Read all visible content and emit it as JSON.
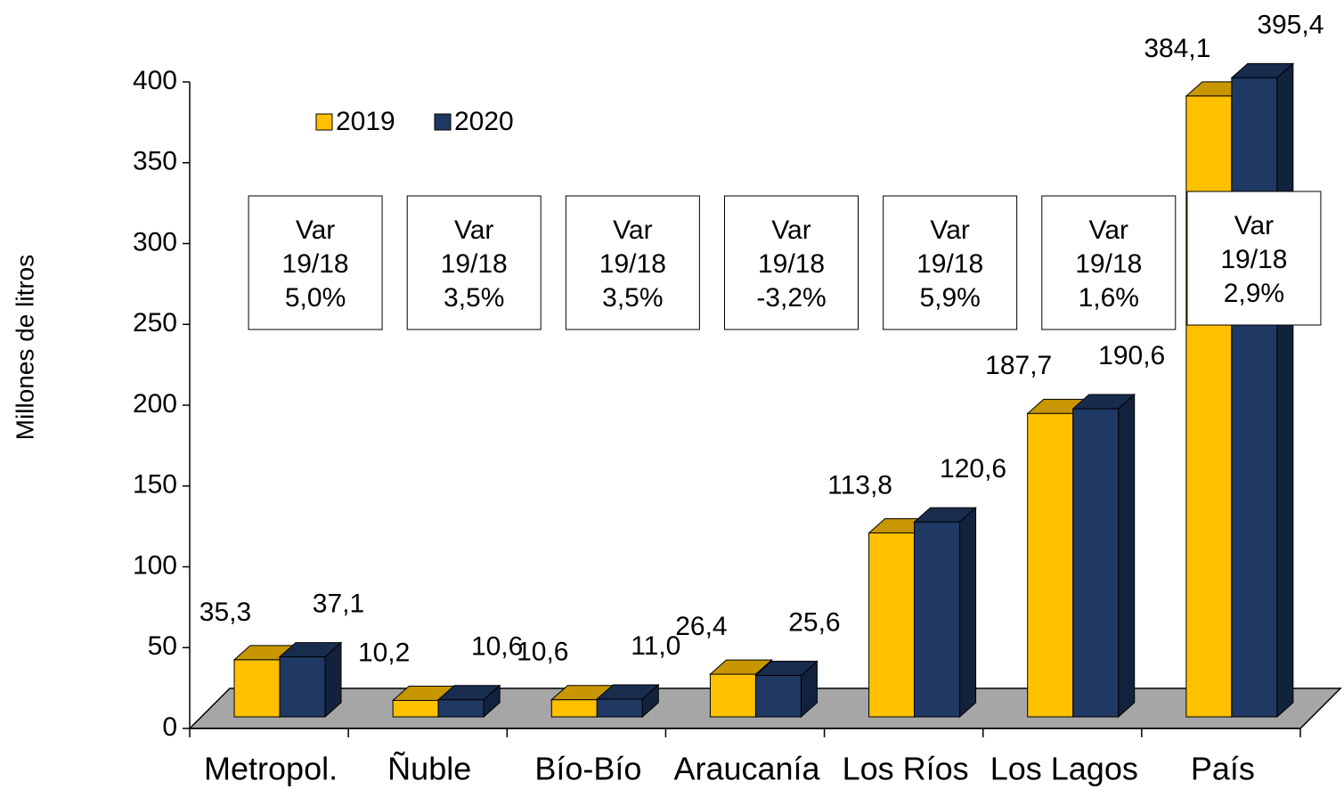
{
  "chart_data": {
    "type": "bar3d",
    "y_label": "Millones de litros",
    "categories": [
      "Metropol.",
      "Ñuble",
      "Bío-Bío",
      "Araucanía",
      "Los Ríos",
      "Los Lagos",
      "País"
    ],
    "series": [
      {
        "name": "2019",
        "color": "#ffc000",
        "values": [
          35.3,
          10.2,
          10.6,
          26.4,
          113.8,
          187.7,
          384.1
        ],
        "value_labels": [
          "35,3",
          "10,2",
          "10,6",
          "26,4",
          "113,8",
          "187,7",
          "384,1"
        ]
      },
      {
        "name": "2020",
        "color": "#1f3864",
        "values": [
          37.1,
          10.6,
          11.0,
          25.6,
          120.6,
          190.6,
          395.4
        ],
        "value_labels": [
          "37,1",
          "10,6",
          "11,0",
          "25,6",
          "120,6",
          "190,6",
          "395,4"
        ]
      }
    ],
    "annotations": [
      [
        "Var",
        "19/18",
        "5,0%"
      ],
      [
        "Var",
        "19/18",
        "3,5%"
      ],
      [
        "Var",
        "19/18",
        "3,5%"
      ],
      [
        "Var",
        "19/18",
        "-3,2%"
      ],
      [
        "Var",
        "19/18",
        "5,9%"
      ],
      [
        "Var",
        "19/18",
        "1,6%"
      ],
      [
        "Var",
        "19/18",
        "2,9%"
      ]
    ],
    "ylim": [
      0,
      400
    ],
    "yticks": [
      0,
      50,
      100,
      150,
      200,
      250,
      300,
      350,
      400
    ]
  }
}
